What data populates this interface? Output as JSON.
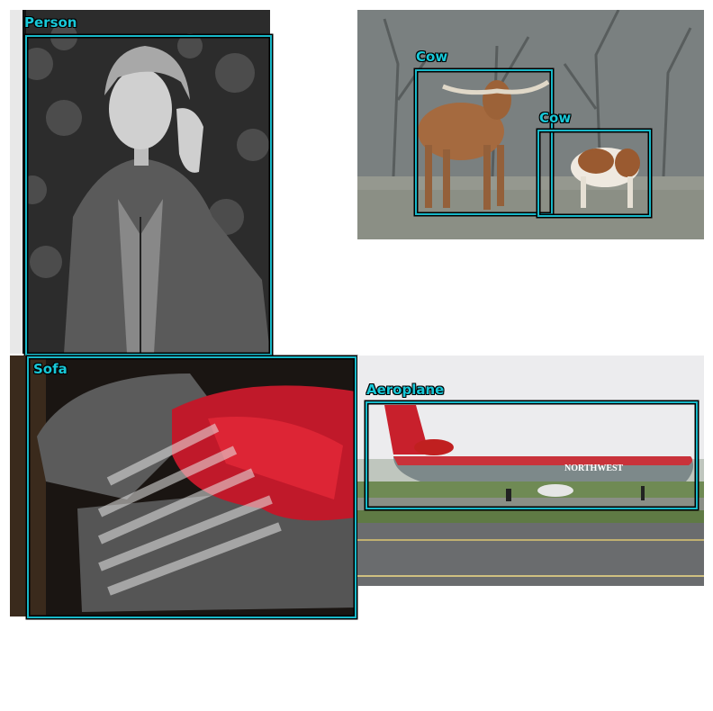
{
  "accent_color": "#18c8d8",
  "panels": [
    {
      "scene": "Black-and-white photo of a young woman in a zip jacket in front of ivy",
      "detections": [
        {
          "label": "Person"
        }
      ]
    },
    {
      "scene": "Two cows standing in a misty field with bare trees",
      "detections": [
        {
          "label": "Cow"
        },
        {
          "label": "Cow"
        }
      ]
    },
    {
      "scene": "Grey sofa with a red cushion in striped sunlight",
      "detections": [
        {
          "label": "Sofa"
        }
      ]
    },
    {
      "scene": "Northwest airliner on a runway",
      "detections": [
        {
          "label": "Aeroplane"
        }
      ],
      "aircraft_text": "NORTHWEST"
    }
  ]
}
